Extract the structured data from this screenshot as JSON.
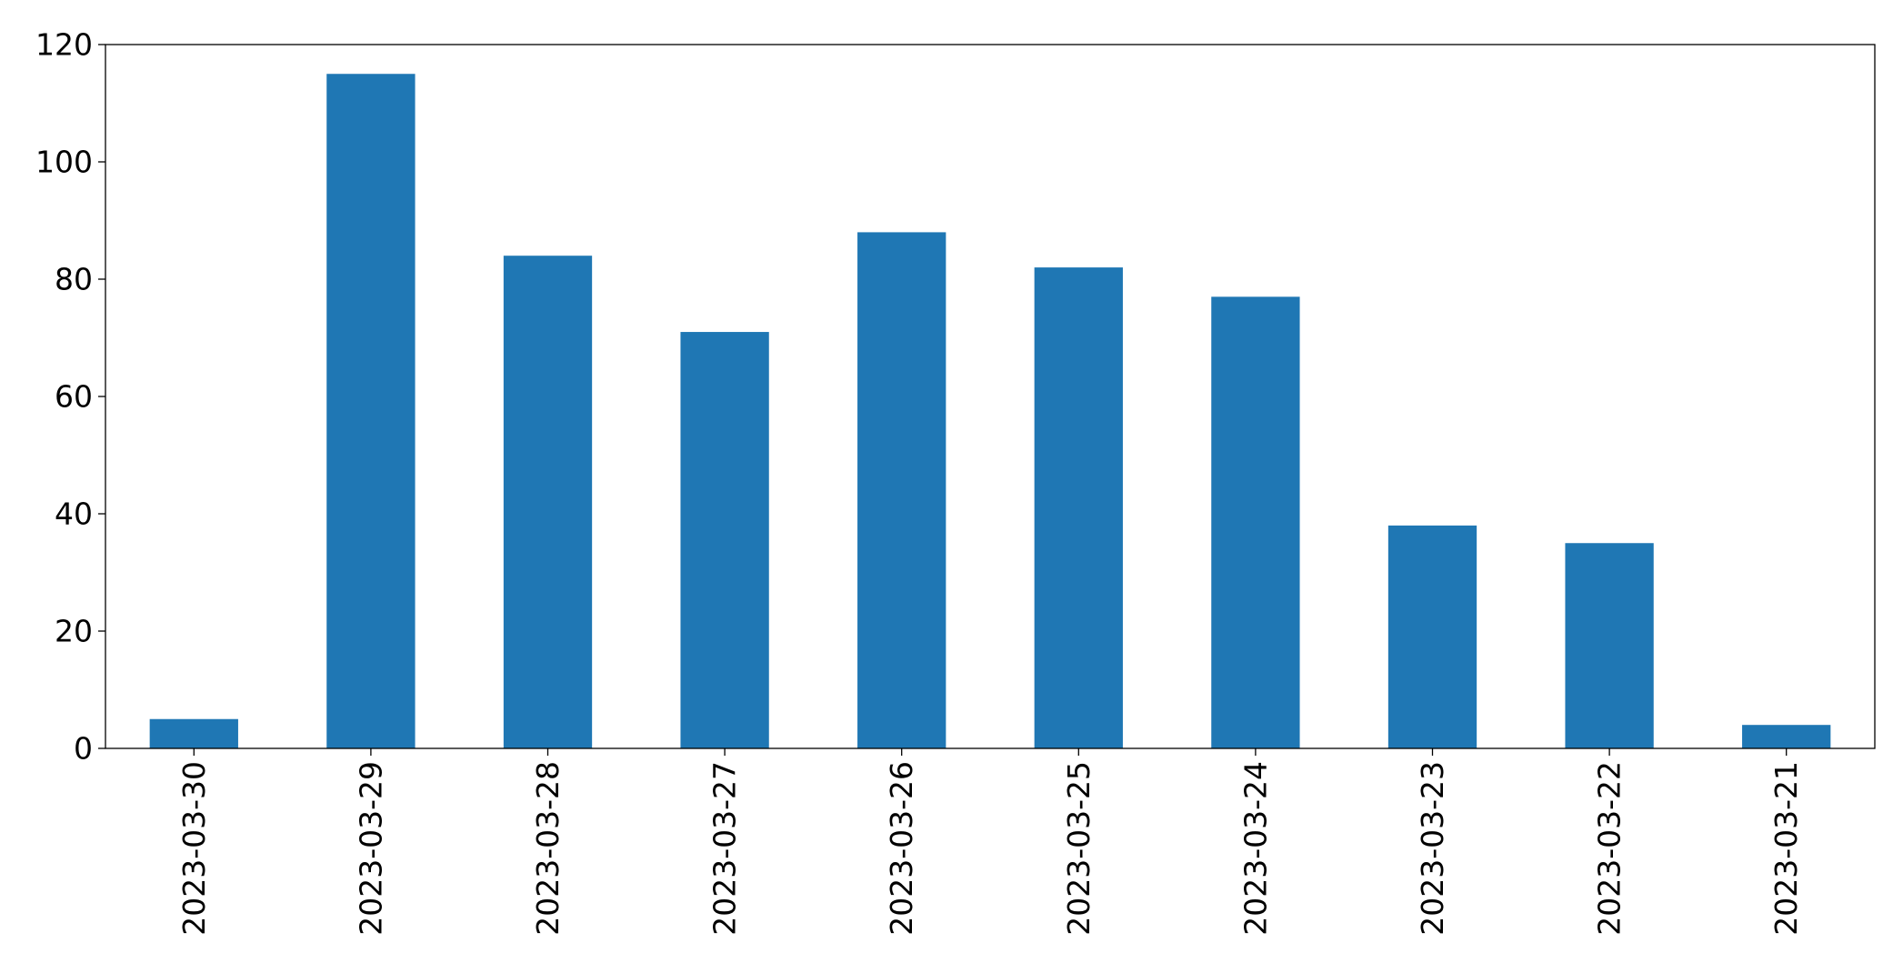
{
  "chart_data": {
    "type": "bar",
    "title": "",
    "xlabel": "",
    "ylabel": "",
    "categories": [
      "2023-03-30",
      "2023-03-29",
      "2023-03-28",
      "2023-03-27",
      "2023-03-26",
      "2023-03-25",
      "2023-03-24",
      "2023-03-23",
      "2023-03-22",
      "2023-03-21"
    ],
    "values": [
      5,
      115,
      84,
      71,
      88,
      82,
      77,
      38,
      35,
      4
    ],
    "ylim": [
      0,
      120
    ],
    "yticks": [
      "0",
      "20",
      "40",
      "60",
      "80",
      "100",
      "120"
    ],
    "grid": false,
    "legend": "none",
    "bar_color": "#1f77b4"
  }
}
